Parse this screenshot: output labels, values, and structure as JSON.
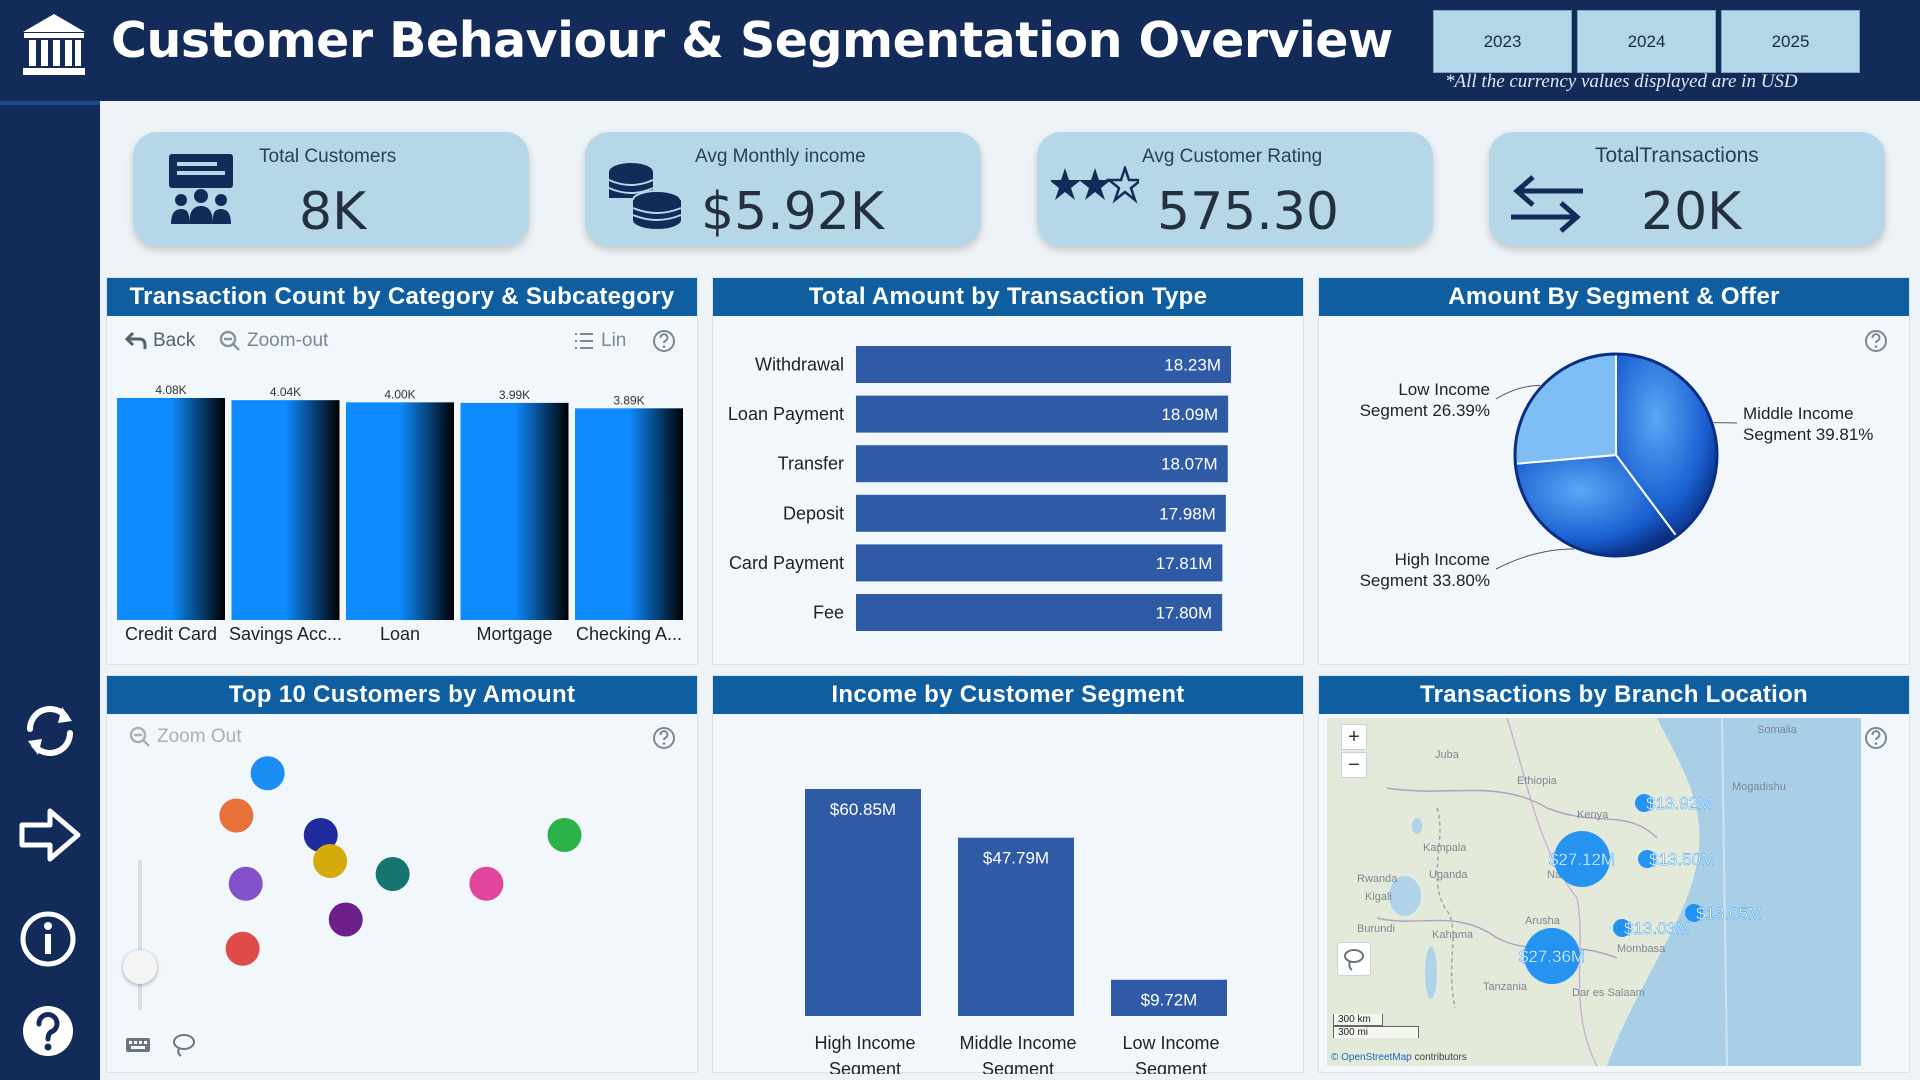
{
  "header": {
    "title": "Customer Behaviour & Segmentation Overview",
    "year_buttons": [
      "2023",
      "2024",
      "2025"
    ],
    "currency_note": "*All the currency values displayed are in USD"
  },
  "sidebar": {
    "icons": [
      "refresh-icon",
      "arrow-right-icon",
      "info-icon",
      "help-icon"
    ]
  },
  "kpis": [
    {
      "label": "Total Customers",
      "value": "8K",
      "icon": "customers-icon"
    },
    {
      "label": "Avg Monthly income",
      "value": "$5.92K",
      "icon": "coins-icon"
    },
    {
      "label": "Avg Customer Rating",
      "value": "575.30",
      "icon": "stars-icon"
    },
    {
      "label": "TotalTransactions",
      "value": "20K",
      "icon": "exchange-arrows-icon"
    }
  ],
  "panels": {
    "category": {
      "title": "Transaction Count by Category & Subcategory",
      "toolbar": {
        "back": "Back",
        "zoom_out": "Zoom-out",
        "lin": "Lin"
      }
    },
    "transaction_type": {
      "title": "Total Amount by Transaction Type"
    },
    "segment_offer": {
      "title": "Amount By Segment & Offer"
    },
    "top_customers": {
      "title": "Top 10 Customers by Amount",
      "toolbar": {
        "zoom_out": "Zoom Out"
      }
    },
    "income_segment": {
      "title": "Income by Customer Segment"
    },
    "branch_location": {
      "title": "Transactions by Branch Location",
      "map": {
        "zoom_in": "+",
        "zoom_out": "−",
        "scale_km": "300 km",
        "scale_mi": "300 mi",
        "attribution_brand": "© OpenStreetMap",
        "attribution_rest": " contributors",
        "place_names": [
          "Juba",
          "Kampala",
          "Kigali",
          "Nairobi",
          "Mombasa",
          "Mogadishu",
          "Arusha",
          "Tanzania",
          "Dar es Salaam",
          "Kahama",
          "Burundi",
          "Rwanda",
          "Uganda",
          "Ethiopia",
          "Somalia",
          "Kenya"
        ],
        "bubbles": [
          {
            "label": "$27.12M"
          },
          {
            "label": "$27.36M"
          },
          {
            "label": "$13.92M"
          },
          {
            "label": "$13.50M"
          },
          {
            "label": "$13.05M"
          },
          {
            "label": "$13.03M"
          }
        ]
      }
    }
  },
  "chart_data": [
    {
      "id": "category",
      "type": "bar",
      "title": "Transaction Count by Category & Subcategory",
      "categories": [
        "Credit Card",
        "Savings Acc...",
        "Loan",
        "Mortgage",
        "Checking A..."
      ],
      "values": [
        4080,
        4040,
        4000,
        3990,
        3890
      ],
      "data_labels": [
        "4.08K",
        "4.04K",
        "4.00K",
        "3.99K",
        "3.89K"
      ],
      "colors": [
        "#0e8bff",
        "#000000"
      ]
    },
    {
      "id": "transaction_type",
      "type": "bar",
      "orientation": "horizontal",
      "title": "Total Amount by Transaction Type",
      "categories": [
        "Withdrawal",
        "Loan Payment",
        "Transfer",
        "Deposit",
        "Card Payment",
        "Fee"
      ],
      "values": [
        18.23,
        18.09,
        18.07,
        17.98,
        17.81,
        17.8
      ],
      "data_labels": [
        "18.23M",
        "18.09M",
        "18.07M",
        "17.98M",
        "17.81M",
        "17.80M"
      ],
      "color": "#2f5aa5"
    },
    {
      "id": "segment_offer",
      "type": "pie",
      "title": "Amount By Segment & Offer",
      "slices": [
        {
          "label_line1": "Middle Income",
          "label_line2": "Segment 39.81%",
          "value": 39.81,
          "color": "#1d6fe0"
        },
        {
          "label_line1": "High Income",
          "label_line2": "Segment 33.80%",
          "value": 33.8,
          "color": "#2a7fe8"
        },
        {
          "label_line1": "Low Income",
          "label_line2": "Segment 26.39%",
          "value": 26.39,
          "color": "#7fbdf5"
        }
      ]
    },
    {
      "id": "top_customers",
      "type": "scatter",
      "title": "Top 10 Customers by Amount",
      "points": [
        {
          "x": 2.9,
          "y": 9.1,
          "color": "#1b8ef2"
        },
        {
          "x": 1.9,
          "y": 7.8,
          "color": "#e8703a"
        },
        {
          "x": 4.6,
          "y": 7.2,
          "color": "#1f2a9c"
        },
        {
          "x": 12.4,
          "y": 7.2,
          "color": "#2bb34a"
        },
        {
          "x": 4.9,
          "y": 6.4,
          "color": "#d4ab0a"
        },
        {
          "x": 6.9,
          "y": 6.0,
          "color": "#16756e"
        },
        {
          "x": 2.2,
          "y": 5.7,
          "color": "#8452c8"
        },
        {
          "x": 9.9,
          "y": 5.7,
          "color": "#e0469b"
        },
        {
          "x": 5.4,
          "y": 4.6,
          "color": "#6d1f8a"
        },
        {
          "x": 2.1,
          "y": 3.7,
          "color": "#df4a4a"
        }
      ],
      "xlim": [
        0,
        16
      ],
      "ylim": [
        2,
        10
      ]
    },
    {
      "id": "income_segment",
      "type": "bar",
      "title": "Income by Customer Segment",
      "categories": [
        "High Income Segment",
        "Middle Income Segment",
        "Low Income Segment"
      ],
      "category_lines": [
        [
          "High Income",
          "Segment"
        ],
        [
          "Middle Income",
          "Segment"
        ],
        [
          "Low Income",
          "Segment"
        ]
      ],
      "values": [
        60.85,
        47.79,
        9.72
      ],
      "data_labels": [
        "$60.85M",
        "$47.79M",
        "$9.72M"
      ],
      "color": "#2f5aa5"
    }
  ]
}
